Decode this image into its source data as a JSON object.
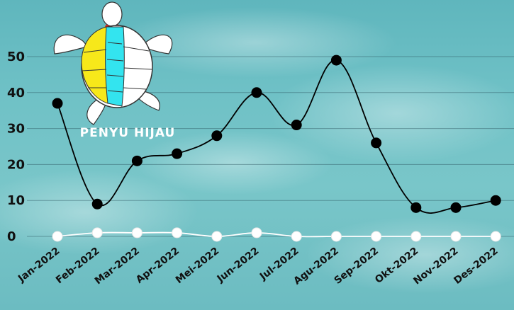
{
  "logo": {
    "caption": "PENYU HIJAU",
    "icon": "green-sea-turtle-icon",
    "colors": {
      "left_scutes": "#f7e81a",
      "center_scutes": "#33e4ef",
      "right_scutes": "#ffffff",
      "head_mark": "#d9261c"
    }
  },
  "chart_data": {
    "type": "line",
    "categories": [
      "Jan-2022",
      "Feb-2022",
      "Mar-2022",
      "Apr-2022",
      "Mei-2022",
      "Jun-2022",
      "Jul-2022",
      "Agu-2022",
      "Sep-2022",
      "Okt-2022",
      "Nov-2022",
      "Des-2022"
    ],
    "series": [
      {
        "values": [
          37,
          9,
          21,
          23,
          28,
          40,
          31,
          49,
          26,
          8,
          8,
          10
        ],
        "color": "#000000"
      },
      {
        "values": [
          0,
          1,
          1,
          1,
          0,
          1,
          0,
          0,
          0,
          0,
          0,
          0
        ],
        "color": "#ffffff"
      }
    ],
    "yticks": [
      0,
      10,
      20,
      30,
      40,
      50
    ],
    "ylim": [
      0,
      50
    ],
    "grid": true,
    "smooth": true,
    "legend": "none"
  }
}
